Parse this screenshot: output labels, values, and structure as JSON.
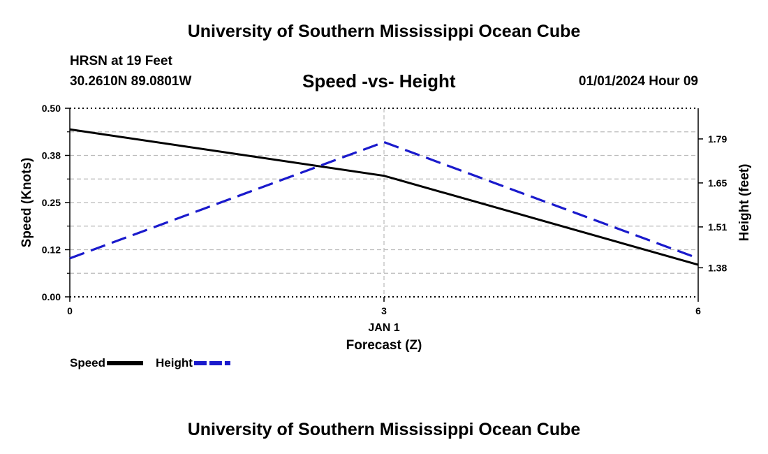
{
  "header": {
    "title": "University of Southern Mississippi Ocean Cube",
    "station": "HRSN at 19 Feet",
    "coords": "30.2610N  89.0801W",
    "subtitle": "Speed -vs- Height",
    "datetime": "01/01/2024 Hour 09"
  },
  "footer": {
    "title": "University of Southern Mississippi Ocean Cube"
  },
  "chart_data": {
    "type": "line",
    "title": "Speed -vs- Height",
    "xlabel": "Forecast (Z)",
    "x_date_label": "JAN 1",
    "x": [
      0,
      3,
      6
    ],
    "xlim": [
      0,
      6
    ],
    "x_ticks": [
      "0",
      "3",
      "6"
    ],
    "y_left": {
      "label": "Speed (Knots)",
      "ylim": [
        0,
        0.5
      ],
      "ticks": [
        0.0,
        0.125,
        0.25,
        0.375,
        0.5
      ],
      "tick_labels": [
        "0.00",
        "0.12",
        "0.25",
        "0.38",
        "0.50"
      ]
    },
    "y_right": {
      "label": "Height (feet)",
      "ylim": [
        1.2875,
        1.8876
      ],
      "ticks": [
        1.38,
        1.51,
        1.65,
        1.79
      ],
      "tick_labels": [
        "1.38",
        "1.51",
        "1.65",
        "1.79"
      ]
    },
    "grid": true,
    "legend_position": "bottom-left",
    "series": [
      {
        "name": "Speed",
        "axis": "left",
        "color": "#000000",
        "style": "solid",
        "values": [
          0.444,
          0.321,
          0.085
        ]
      },
      {
        "name": "Height",
        "axis": "right",
        "color": "#1a1acc",
        "style": "dashed",
        "values": [
          1.41,
          1.78,
          1.41
        ]
      }
    ]
  }
}
